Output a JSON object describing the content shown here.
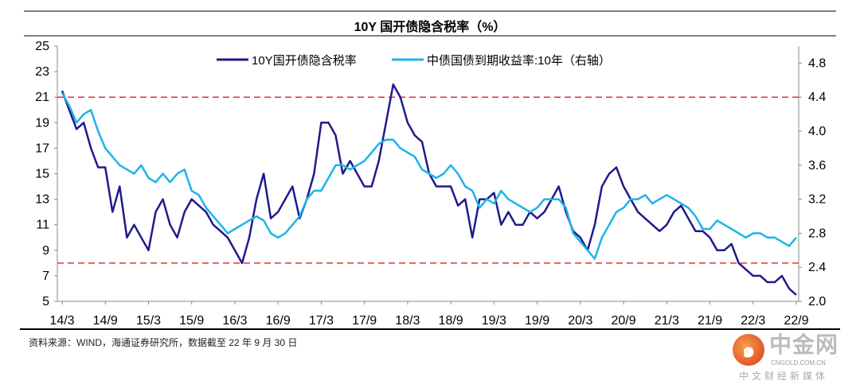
{
  "title": "10Y 国开债隐含税率（%）",
  "source": "资料来源：WIND，海通证券研究所，数据截至 22 年 9 月 30 日",
  "watermark": {
    "name": "中金网",
    "url": "CNGOLD.COM.CN",
    "tagline": "中文财经新媒体"
  },
  "chart_data": {
    "type": "line",
    "title": "10Y 国开债隐含税率（%）",
    "x_ticks": [
      "14/3",
      "14/9",
      "15/3",
      "15/9",
      "16/3",
      "16/9",
      "17/3",
      "17/9",
      "18/3",
      "18/9",
      "19/3",
      "19/9",
      "20/3",
      "20/9",
      "21/3",
      "21/9",
      "22/3",
      "22/9"
    ],
    "x_unit": "months since 2014-03",
    "y_left": {
      "min": 5,
      "max": 25,
      "ticks": [
        5,
        7,
        9,
        11,
        13,
        15,
        17,
        19,
        21,
        23,
        25
      ]
    },
    "y_right": {
      "min": 2.0,
      "max": 5.0,
      "ticks": [
        "2.0",
        "2.4",
        "2.8",
        "3.2",
        "3.6",
        "4.0",
        "4.4",
        "4.8"
      ]
    },
    "reference_lines_left": [
      21,
      8
    ],
    "legend_position": "top-center",
    "colors": {
      "tax": "#1f1a8c",
      "yield": "#1cb4e8",
      "ref": "#e53030"
    },
    "series": [
      {
        "name": "10Y国开债隐含税率",
        "axis": "left",
        "values": [
          21.5,
          20,
          18.5,
          19,
          17,
          15.5,
          15.5,
          12,
          14,
          10,
          11,
          10,
          9,
          12,
          13,
          11,
          10,
          12,
          13,
          12.5,
          12,
          11,
          10.5,
          10,
          9,
          8,
          10,
          13,
          15,
          11.5,
          12,
          13,
          14,
          11.5,
          13,
          15,
          19,
          19,
          18,
          15,
          16,
          15,
          14,
          14,
          16,
          19,
          22,
          21,
          19,
          18,
          17.5,
          15,
          14,
          14,
          14,
          12.5,
          13,
          10,
          13,
          13,
          13.5,
          11,
          12,
          11,
          11,
          12,
          11.5,
          12,
          13,
          14,
          12,
          10.5,
          10,
          9,
          11,
          14,
          15,
          15.5,
          14,
          13,
          12,
          11.5,
          11,
          10.5,
          11,
          12,
          12.5,
          11.5,
          10.5,
          10.5,
          10,
          9,
          9,
          9.5,
          8,
          7.5,
          7,
          7,
          6.5,
          6.5,
          7,
          6,
          5.5
        ]
      },
      {
        "name": "中债国债到期收益率:10年（右轴）",
        "axis": "right",
        "values": [
          4.45,
          4.3,
          4.1,
          4.2,
          4.25,
          4.0,
          3.8,
          3.7,
          3.6,
          3.55,
          3.5,
          3.6,
          3.45,
          3.4,
          3.5,
          3.4,
          3.5,
          3.55,
          3.3,
          3.25,
          3.1,
          3.0,
          2.9,
          2.8,
          2.85,
          2.9,
          2.95,
          3.0,
          2.95,
          2.8,
          2.75,
          2.8,
          2.9,
          3.0,
          3.2,
          3.3,
          3.3,
          3.45,
          3.6,
          3.6,
          3.55,
          3.6,
          3.65,
          3.75,
          3.85,
          3.9,
          3.9,
          3.8,
          3.75,
          3.7,
          3.55,
          3.5,
          3.45,
          3.5,
          3.6,
          3.5,
          3.35,
          3.3,
          3.1,
          3.2,
          3.15,
          3.3,
          3.2,
          3.15,
          3.1,
          3.05,
          3.1,
          3.2,
          3.2,
          3.2,
          3.1,
          2.8,
          2.7,
          2.6,
          2.5,
          2.75,
          2.9,
          3.05,
          3.1,
          3.2,
          3.2,
          3.25,
          3.15,
          3.2,
          3.25,
          3.2,
          3.15,
          3.1,
          3.0,
          2.85,
          2.85,
          2.95,
          2.9,
          2.85,
          2.8,
          2.75,
          2.8,
          2.8,
          2.75,
          2.75,
          2.7,
          2.65,
          2.75
        ]
      }
    ]
  }
}
